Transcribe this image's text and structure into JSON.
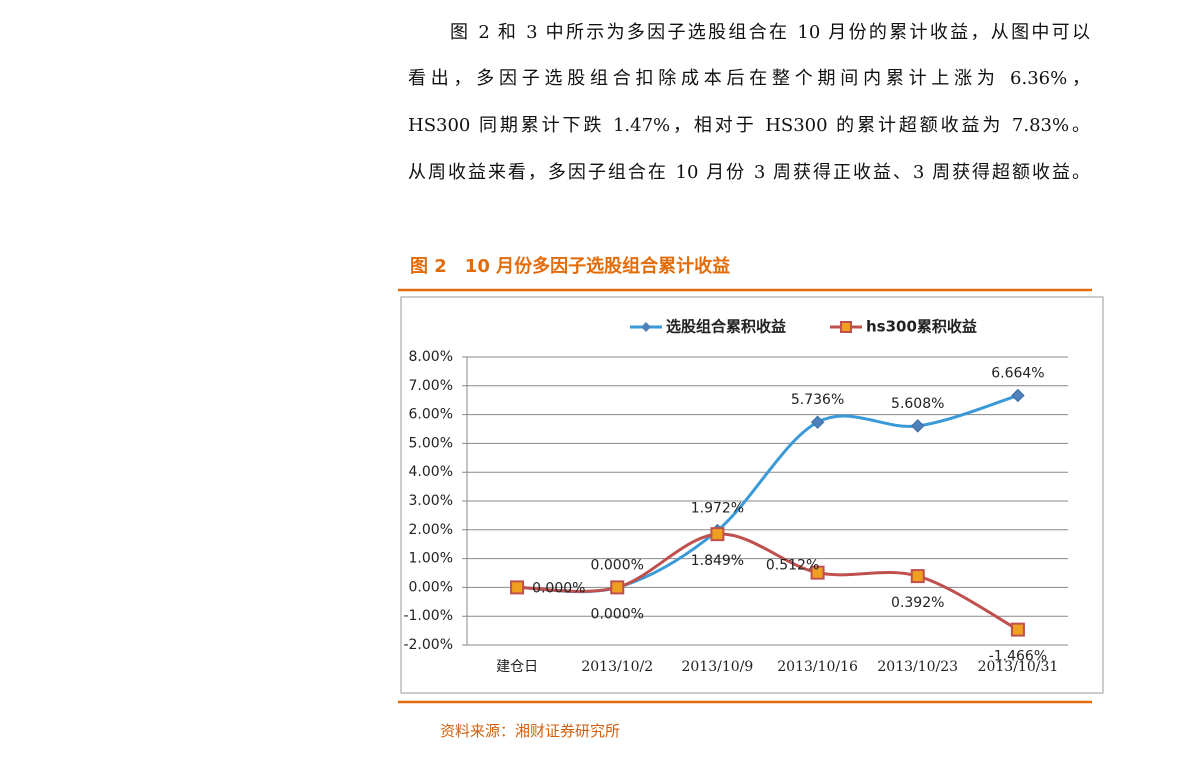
{
  "paragraph": [
    "图 2 和 3 中所示为多因子选股组合在 10 月份的累计收益，从图中可以",
    "看出，多因子选股组合扣除成本后在整个期间内累计上涨为 6.36%，",
    "HS300 同期累计下跌 1.47%，相对于 HS300 的累计超额收益为 7.83%。",
    "从周收益来看，多因子组合在 10 月份 3 周获得正收益、3 周获得超额收益。"
  ],
  "figure_caption": "图 2　10 月份多因子选股组合累计收益",
  "chart_data": {
    "type": "line",
    "categories": [
      "建仓日",
      "2013/10/2",
      "2013/10/9",
      "2013/10/16",
      "2013/10/23",
      "2013/10/31"
    ],
    "series": [
      {
        "name": "选股组合累积收益",
        "color": "#3a9ad8",
        "marker_color": "#4f81bd",
        "values": [
          0,
          0,
          1.972,
          5.736,
          5.608,
          6.664
        ],
        "value_labels": [
          "0.000%",
          "0.000%",
          "1.972%",
          "5.736%",
          "5.608%",
          "6.664%"
        ]
      },
      {
        "name": "hs300累积收益",
        "color": "#c0504d",
        "marker_color": "#f0a020",
        "values": [
          0,
          0,
          1.849,
          0.512,
          0.392,
          -1.466
        ],
        "value_labels": [
          null,
          "0.000%",
          "1.849%",
          "0.512%",
          "0.392%",
          "-1.466%"
        ]
      }
    ],
    "ylim": [
      -2,
      8
    ],
    "yticks": [
      {
        "value": -2,
        "label": "-2.00%"
      },
      {
        "value": -1,
        "label": "-1.00%"
      },
      {
        "value": 0,
        "label": "0.00%"
      },
      {
        "value": 1,
        "label": "1.00%"
      },
      {
        "value": 2,
        "label": "2.00%"
      },
      {
        "value": 3,
        "label": "3.00%"
      },
      {
        "value": 4,
        "label": "4.00%"
      },
      {
        "value": 5,
        "label": "5.00%"
      },
      {
        "value": 6,
        "label": "6.00%"
      },
      {
        "value": 7,
        "label": "7.00%"
      },
      {
        "value": 8,
        "label": "8.00%"
      }
    ],
    "grid": true,
    "legend": "top"
  },
  "source": "资料来源：湘财证券研究所"
}
